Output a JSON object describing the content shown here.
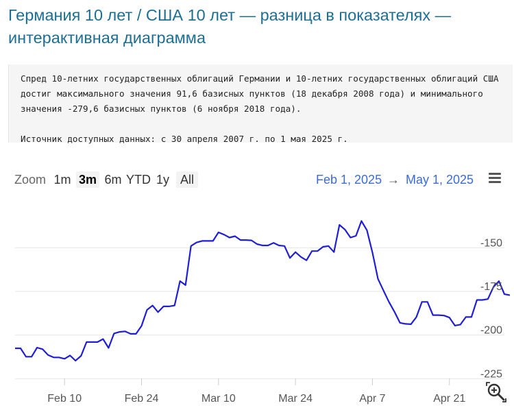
{
  "title": "Германия 10 лет / США 10 лет — разница в показателях — интерактивная диаграмма",
  "description": "Спред 10-летних государственных облигаций Германии и 10-летних государственных облигаций США достиг максимального значения 91,6 базисных пунктов (18 декабря 2008 года) и минимального значения -279,6 базисных пунктов (6 ноября 2018 года).",
  "source": "Источник доступных данных: с 30 апреля 2007 г. по 1 мая 2025 г.",
  "toolbar": {
    "zoom_label": "Zoom",
    "ranges": [
      "1m",
      "3m",
      "6m",
      "YTD",
      "1y",
      "All"
    ],
    "active_range": "3m",
    "from_date": "Feb 1, 2025",
    "arrow": "→",
    "to_date": "May 1, 2025"
  },
  "chart_data": {
    "type": "line",
    "x_tick_labels": [
      "Feb 10",
      "Feb 24",
      "Mar 10",
      "Mar 24",
      "Apr 7",
      "Apr 21"
    ],
    "x_tick_days": [
      9,
      23,
      37,
      51,
      65,
      79
    ],
    "y_tick_labels": [
      "-150",
      "-175",
      "-200",
      "-225"
    ],
    "y_ticks": [
      -150,
      -175,
      -200,
      -225
    ],
    "ylim": [
      -228,
      -122
    ],
    "xlim": [
      0,
      89
    ],
    "grid": true,
    "line_color": "#1d1ed6",
    "points": [
      [
        0,
        -207.6
      ],
      [
        1,
        -207.6
      ],
      [
        2,
        -212.4
      ],
      [
        3,
        -212.4
      ],
      [
        4,
        -207.2
      ],
      [
        5,
        -208.1
      ],
      [
        6,
        -211.4
      ],
      [
        7,
        -212.8
      ],
      [
        8,
        -212.8
      ],
      [
        9,
        -213.6
      ],
      [
        10,
        -211.7
      ],
      [
        11,
        -214.7
      ],
      [
        12,
        -211.9
      ],
      [
        13,
        -204.0
      ],
      [
        14,
        -204.0
      ],
      [
        15,
        -204.0
      ],
      [
        16,
        -202.3
      ],
      [
        17,
        -207.4
      ],
      [
        18,
        -199.1
      ],
      [
        19,
        -198.2
      ],
      [
        20,
        -197.9
      ],
      [
        21,
        -199.3
      ],
      [
        22,
        -199.3
      ],
      [
        23,
        -194.8
      ],
      [
        24,
        -185.6
      ],
      [
        25,
        -183.1
      ],
      [
        26,
        -186.9
      ],
      [
        27,
        -183.6
      ],
      [
        28,
        -183.6
      ],
      [
        29,
        -183.1
      ],
      [
        30,
        -169.1
      ],
      [
        31,
        -171.4
      ],
      [
        32,
        -149.0
      ],
      [
        33,
        -147.0
      ],
      [
        34,
        -146.1
      ],
      [
        35,
        -146.1
      ],
      [
        36,
        -146.1
      ],
      [
        37,
        -141.2
      ],
      [
        38,
        -142.5
      ],
      [
        39,
        -144.2
      ],
      [
        40,
        -143.4
      ],
      [
        41,
        -145.6
      ],
      [
        42,
        -145.6
      ],
      [
        43,
        -145.8
      ],
      [
        44,
        -147.9
      ],
      [
        45,
        -148.7
      ],
      [
        46,
        -148.7
      ],
      [
        47,
        -147.2
      ],
      [
        48,
        -148.7
      ],
      [
        49,
        -149.0
      ],
      [
        50,
        -155.9
      ],
      [
        51,
        -152.5
      ],
      [
        52,
        -155.3
      ],
      [
        53,
        -157.2
      ],
      [
        54,
        -151.9
      ],
      [
        55,
        -151.9
      ],
      [
        56,
        -149.5
      ],
      [
        57,
        -149.0
      ],
      [
        58,
        -152.5
      ],
      [
        59,
        -136.9
      ],
      [
        60,
        -139.6
      ],
      [
        61,
        -144.2
      ],
      [
        62,
        -143.2
      ],
      [
        63,
        -134.7
      ],
      [
        64,
        -140.0
      ],
      [
        65,
        -152.8
      ],
      [
        66,
        -167.8
      ],
      [
        67,
        -174.5
      ],
      [
        68,
        -181.0
      ],
      [
        69,
        -186.7
      ],
      [
        70,
        -193.0
      ],
      [
        71,
        -193.6
      ],
      [
        72,
        -193.8
      ],
      [
        73,
        -189.7
      ],
      [
        74,
        -181.0
      ],
      [
        75,
        -181.0
      ],
      [
        76,
        -188.6
      ],
      [
        77,
        -188.6
      ],
      [
        78,
        -188.8
      ],
      [
        79,
        -190.0
      ],
      [
        80,
        -194.6
      ],
      [
        81,
        -194.0
      ],
      [
        82,
        -189.7
      ],
      [
        83,
        -189.7
      ],
      [
        84,
        -179.9
      ],
      [
        85,
        -179.9
      ],
      [
        86,
        -179.4
      ],
      [
        87,
        -172.5
      ],
      [
        88,
        -169.1
      ],
      [
        89,
        -176.6
      ],
      [
        90,
        -177.2
      ]
    ]
  }
}
